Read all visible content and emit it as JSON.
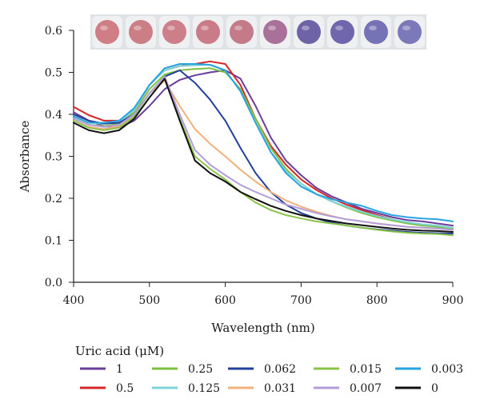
{
  "chart_data": {
    "type": "line",
    "title": "",
    "xlabel": "Wavelength (nm)",
    "ylabel": "Absorbance",
    "xlim": [
      400,
      900
    ],
    "ylim": [
      0,
      0.6
    ],
    "x_ticks": [
      "400",
      "500",
      "600",
      "700",
      "800",
      "900"
    ],
    "y_ticks": [
      "0.0",
      "0.1",
      "0.2",
      "0.3",
      "0.4",
      "0.5",
      "0.6"
    ],
    "grid": false,
    "legend_title": "Uric acid (μM)",
    "legend_position": "bottom",
    "x": [
      400,
      420,
      440,
      460,
      480,
      500,
      520,
      540,
      560,
      580,
      600,
      620,
      640,
      660,
      680,
      700,
      720,
      740,
      760,
      780,
      800,
      820,
      840,
      860,
      880,
      900
    ],
    "series": [
      {
        "name": "1",
        "color": "#6a3d9a",
        "values": [
          0.405,
          0.385,
          0.372,
          0.368,
          0.385,
          0.42,
          0.46,
          0.482,
          0.493,
          0.5,
          0.505,
          0.485,
          0.42,
          0.345,
          0.29,
          0.255,
          0.225,
          0.205,
          0.19,
          0.175,
          0.165,
          0.155,
          0.148,
          0.145,
          0.14,
          0.135
        ]
      },
      {
        "name": "0.5",
        "color": "#d62728",
        "values": [
          0.418,
          0.398,
          0.385,
          0.385,
          0.41,
          0.47,
          0.505,
          0.515,
          0.52,
          0.526,
          0.52,
          0.47,
          0.39,
          0.325,
          0.28,
          0.245,
          0.22,
          0.2,
          0.185,
          0.172,
          0.16,
          0.15,
          0.142,
          0.137,
          0.133,
          0.128
        ]
      },
      {
        "name": "0.25",
        "color": "#7cc242",
        "values": [
          0.39,
          0.375,
          0.372,
          0.378,
          0.405,
          0.46,
          0.495,
          0.505,
          0.508,
          0.51,
          0.5,
          0.46,
          0.39,
          0.32,
          0.27,
          0.235,
          0.21,
          0.193,
          0.178,
          0.165,
          0.155,
          0.147,
          0.14,
          0.135,
          0.132,
          0.128
        ]
      },
      {
        "name": "0.125",
        "color": "#7fd3d8",
        "values": [
          0.395,
          0.38,
          0.378,
          0.382,
          0.41,
          0.47,
          0.505,
          0.515,
          0.517,
          0.518,
          0.505,
          0.455,
          0.38,
          0.31,
          0.265,
          0.235,
          0.21,
          0.193,
          0.18,
          0.168,
          0.158,
          0.15,
          0.143,
          0.138,
          0.135,
          0.13
        ]
      },
      {
        "name": "0.062",
        "color": "#23409a",
        "values": [
          0.4,
          0.385,
          0.378,
          0.38,
          0.4,
          0.45,
          0.49,
          0.505,
          0.475,
          0.435,
          0.385,
          0.32,
          0.26,
          0.215,
          0.185,
          0.165,
          0.152,
          0.142,
          0.135,
          0.13,
          0.126,
          0.123,
          0.12,
          0.118,
          0.117,
          0.116
        ]
      },
      {
        "name": "0.031",
        "color": "#f0b27a",
        "values": [
          0.385,
          0.37,
          0.365,
          0.372,
          0.4,
          0.45,
          0.48,
          0.42,
          0.365,
          0.33,
          0.3,
          0.268,
          0.24,
          0.215,
          0.195,
          0.18,
          0.168,
          0.158,
          0.15,
          0.145,
          0.14,
          0.136,
          0.132,
          0.13,
          0.128,
          0.125
        ]
      },
      {
        "name": "0.015",
        "color": "#8bc34a",
        "values": [
          0.385,
          0.368,
          0.362,
          0.368,
          0.395,
          0.45,
          0.49,
          0.39,
          0.3,
          0.27,
          0.245,
          0.215,
          0.19,
          0.172,
          0.16,
          0.152,
          0.145,
          0.14,
          0.135,
          0.13,
          0.125,
          0.121,
          0.118,
          0.116,
          0.115,
          0.112
        ]
      },
      {
        "name": "0.007",
        "color": "#b39ddb",
        "values": [
          0.39,
          0.375,
          0.37,
          0.375,
          0.4,
          0.45,
          0.49,
          0.4,
          0.315,
          0.28,
          0.255,
          0.232,
          0.215,
          0.2,
          0.185,
          0.175,
          0.165,
          0.157,
          0.15,
          0.145,
          0.14,
          0.136,
          0.132,
          0.13,
          0.128,
          0.125
        ]
      },
      {
        "name": "0.003",
        "color": "#29a3e0",
        "values": [
          0.395,
          0.38,
          0.38,
          0.385,
          0.415,
          0.47,
          0.51,
          0.52,
          0.52,
          0.518,
          0.505,
          0.455,
          0.38,
          0.31,
          0.26,
          0.228,
          0.21,
          0.198,
          0.19,
          0.182,
          0.17,
          0.16,
          0.155,
          0.152,
          0.15,
          0.145
        ]
      },
      {
        "name": "0",
        "color": "#111111",
        "values": [
          0.38,
          0.362,
          0.355,
          0.362,
          0.39,
          0.44,
          0.485,
          0.385,
          0.29,
          0.26,
          0.24,
          0.215,
          0.198,
          0.182,
          0.17,
          0.16,
          0.152,
          0.146,
          0.14,
          0.136,
          0.132,
          0.128,
          0.125,
          0.123,
          0.122,
          0.12
        ]
      }
    ],
    "legend_order": [
      "1",
      "0.25",
      "0.062",
      "0.015",
      "0.003",
      "0.5",
      "0.125",
      "0.031",
      "0.007",
      "0"
    ],
    "inset_image": {
      "description_colors": [
        "#cf7e85",
        "#cc7e86",
        "#cc7f88",
        "#c97c87",
        "#c47a89",
        "#a9709a",
        "#6e63a6",
        "#6f66ad",
        "#7572b6",
        "#7b79b9"
      ]
    }
  }
}
